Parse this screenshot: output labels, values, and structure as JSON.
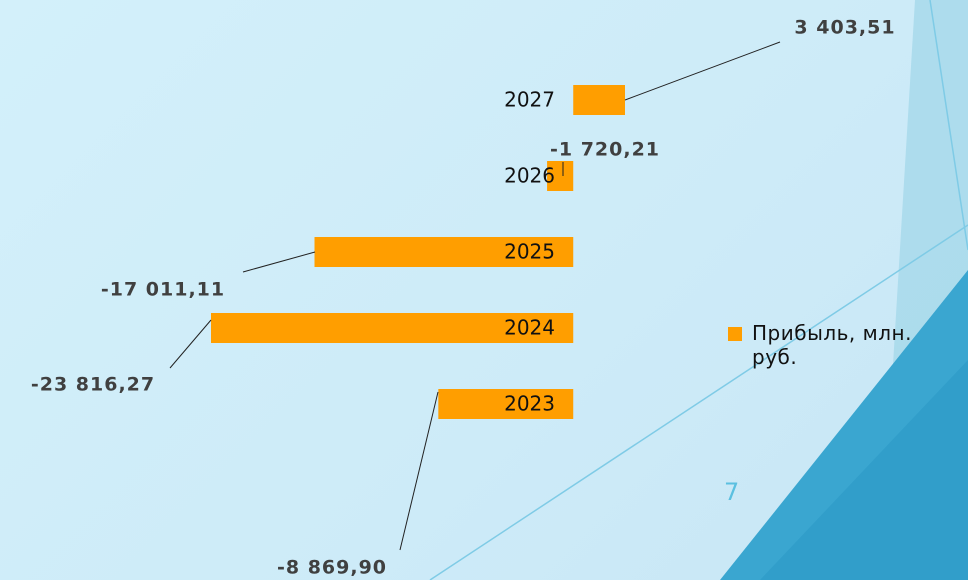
{
  "chart_data": {
    "type": "bar",
    "orientation": "horizontal",
    "categories": [
      "2023",
      "2024",
      "2025",
      "2026",
      "2027"
    ],
    "series": [
      {
        "name": "Прибыль, млн. руб.",
        "color": "#ff9e00",
        "values": [
          -8869.9,
          -23816.27,
          -17011.11,
          -1720.21,
          3403.51
        ],
        "value_labels": [
          "-8 869,90",
          "-23 816,27",
          "-17 011,11",
          "-1 720,21",
          "3 403,51"
        ]
      }
    ],
    "legend": "right"
  },
  "slide_number": 7
}
